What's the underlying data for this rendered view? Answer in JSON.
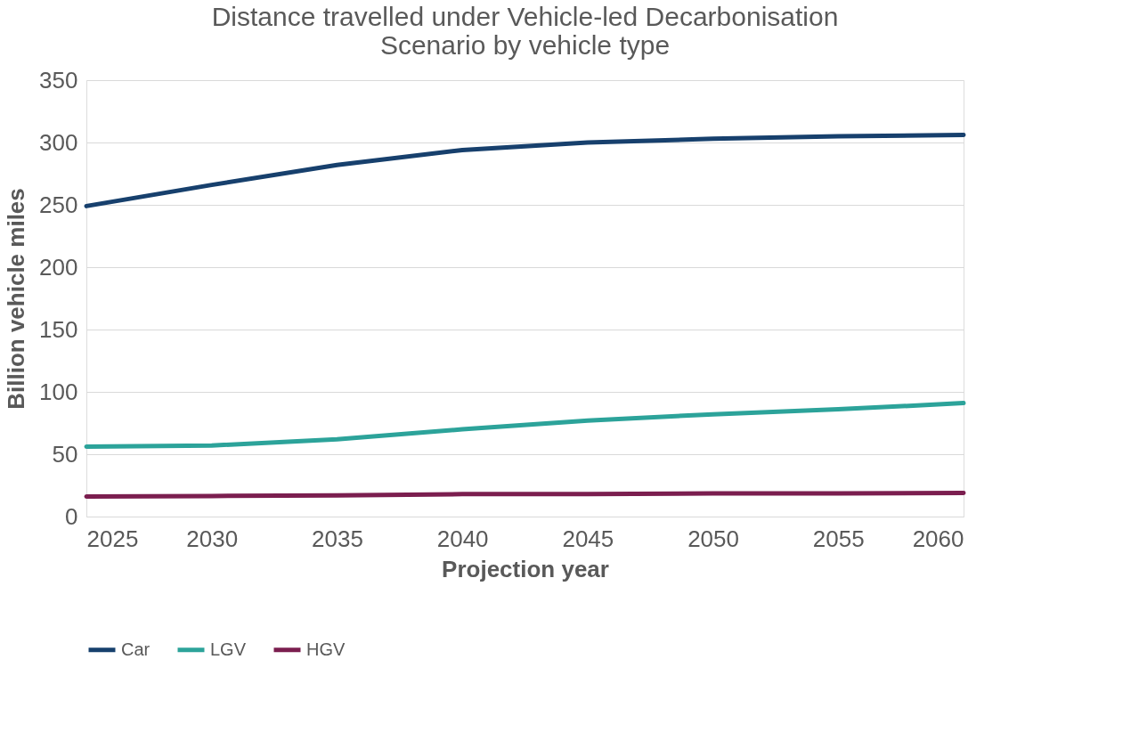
{
  "chart_data": {
    "type": "line",
    "title": "Distance travelled under Vehicle-led Decarbonisation Scenario by vehicle type",
    "xlabel": "Projection year",
    "ylabel": "Billion vehicle miles",
    "x": [
      2025,
      2030,
      2035,
      2040,
      2045,
      2050,
      2055,
      2060
    ],
    "series": [
      {
        "name": "Car",
        "color": "#17406d",
        "values": [
          249,
          266,
          282,
          294,
          300,
          303,
          305,
          306
        ]
      },
      {
        "name": "LGV",
        "color": "#2ca39a",
        "values": [
          56,
          57,
          62,
          70,
          77,
          82,
          86,
          91
        ]
      },
      {
        "name": "HGV",
        "color": "#7b1e4f",
        "values": [
          16,
          16.5,
          17,
          18,
          18,
          18.5,
          18.5,
          19
        ]
      }
    ],
    "xlim": [
      2025,
      2060
    ],
    "xticks": [
      2025,
      2030,
      2035,
      2040,
      2045,
      2050,
      2055,
      2060
    ],
    "ylim": [
      0,
      350
    ],
    "yticks": [
      0,
      50,
      100,
      150,
      200,
      250,
      300,
      350
    ],
    "grid": "y",
    "legend": "bottom",
    "line_style": "solid",
    "marker": "none"
  }
}
